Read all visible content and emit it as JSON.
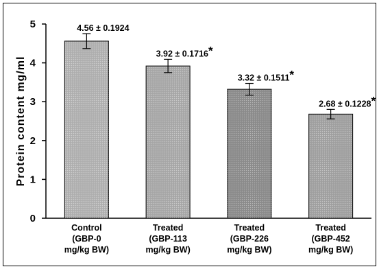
{
  "chart_data": {
    "type": "bar",
    "title": "",
    "xlabel": "",
    "ylabel": "Protein content mg/ml",
    "ylim": [
      0,
      5
    ],
    "yticks": [
      0,
      1,
      2,
      3,
      4,
      5
    ],
    "grid": false,
    "categories": [
      [
        "Control",
        "(GBP-0",
        "mg/kg BW)"
      ],
      [
        "Treated",
        "(GBP-113",
        "mg/kg BW)"
      ],
      [
        "Treated",
        "(GBP-226",
        "mg/kg BW)"
      ],
      [
        "Treated",
        "(GBP-452",
        "mg/kg BW)"
      ]
    ],
    "values": [
      4.56,
      3.92,
      3.32,
      2.68
    ],
    "errors": [
      0.1924,
      0.1716,
      0.1511,
      0.1228
    ],
    "data_labels": [
      "4.56 ± 0.1924",
      "3.92 ± 0.1716",
      "3.32 ± 0.1511",
      "2.68 ± 0.1228"
    ],
    "significance_marks": [
      "",
      "*",
      "*",
      "*"
    ],
    "bar_colors": [
      "#b4b4b4",
      "#acacac",
      "#8f8f8f",
      "#a4a4a4"
    ]
  }
}
